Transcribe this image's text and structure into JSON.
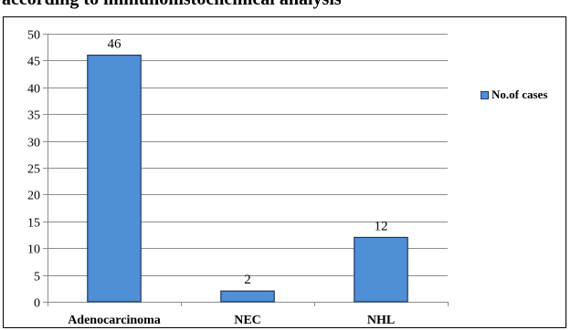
{
  "title_fragment": "according to immunohistochemical analysis",
  "chart_data": {
    "type": "bar",
    "categories": [
      "Adenocarcinoma",
      "NEC",
      "NHL"
    ],
    "series": [
      {
        "name": "No.of cases",
        "values": [
          46,
          2,
          12
        ]
      }
    ],
    "ylim": [
      0,
      50
    ],
    "yticks": [
      0,
      5,
      10,
      15,
      20,
      25,
      30,
      35,
      40,
      45,
      50
    ],
    "grid": true,
    "legend_position": "right",
    "colors": {
      "bar_fill": "#4f8fd6",
      "bar_stroke": "#1f3864",
      "grid": "#8c8c8c",
      "axis": "#8c8c8c"
    }
  }
}
